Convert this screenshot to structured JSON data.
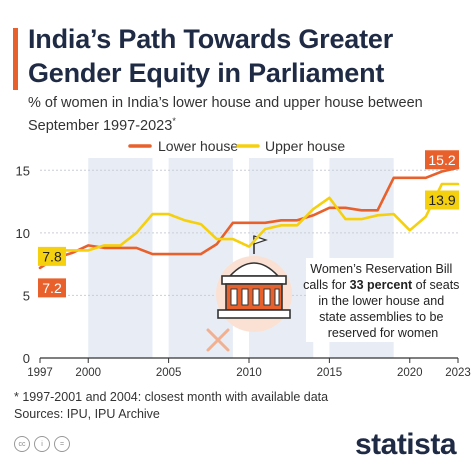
{
  "title": "India’s Path Towards Greater Gender Equity in Parliament",
  "subtitle": "% of women in India’s lower house and upper house between September 1997-2023",
  "subtitle_mark": "*",
  "footnote": "* 1997-2001 and 2004: closest month with available data",
  "sources": "Sources: IPU, IPU Archive",
  "brand": "statista",
  "license_icons": [
    "creative-commons-icon",
    "attribution-icon",
    "no-derivatives-icon"
  ],
  "colors": {
    "lower_house": "#e8612c",
    "upper_house": "#f5d00f",
    "shade": "#e8edf5",
    "title": "#1f2a44"
  },
  "chart_data": {
    "type": "line",
    "xlim": [
      1997,
      2023
    ],
    "ylim": [
      0,
      15.5
    ],
    "yticks": [
      0,
      5,
      10,
      15
    ],
    "xtick_labels": [
      "1997",
      "2000",
      "2005",
      "2010",
      "2015",
      "2020",
      "2023"
    ],
    "grid": true,
    "legend_placement": "top",
    "shaded_bands": [
      [
        2000,
        2004
      ],
      [
        2005,
        2009
      ],
      [
        2010,
        2014
      ],
      [
        2015,
        2019
      ]
    ],
    "series": [
      {
        "name": "Lower house",
        "x": [
          1997,
          1998,
          1999,
          2000,
          2001,
          2002,
          2003,
          2004,
          2005,
          2006,
          2007,
          2008,
          2009,
          2010,
          2011,
          2012,
          2013,
          2014,
          2015,
          2016,
          2017,
          2018,
          2019,
          2020,
          2021,
          2022,
          2023
        ],
        "values": [
          7.2,
          8.0,
          8.4,
          9.0,
          8.8,
          8.8,
          8.8,
          8.3,
          8.3,
          8.3,
          8.3,
          9.1,
          10.8,
          10.8,
          10.8,
          11.0,
          11.0,
          11.4,
          12.0,
          12.0,
          11.8,
          11.8,
          14.4,
          14.4,
          14.4,
          14.9,
          15.2
        ]
      },
      {
        "name": "Upper house",
        "x": [
          1997,
          1998,
          1999,
          2000,
          2001,
          2002,
          2003,
          2004,
          2005,
          2006,
          2007,
          2008,
          2009,
          2010,
          2011,
          2012,
          2013,
          2014,
          2015,
          2016,
          2017,
          2018,
          2019,
          2020,
          2021,
          2022,
          2023
        ],
        "values": [
          7.8,
          8.6,
          8.6,
          8.6,
          9.0,
          9.0,
          10.0,
          11.5,
          11.5,
          11.0,
          10.7,
          9.5,
          9.5,
          8.9,
          10.3,
          10.6,
          10.6,
          11.9,
          12.8,
          11.1,
          11.1,
          11.4,
          11.5,
          10.2,
          11.3,
          13.9,
          13.9
        ]
      }
    ],
    "data_labels": [
      {
        "series": "Lower house",
        "x": 1997,
        "text": "7.2"
      },
      {
        "series": "Upper house",
        "x": 1997,
        "text": "7.8"
      },
      {
        "series": "Lower house",
        "x": 2023,
        "text": "15.2"
      },
      {
        "series": "Upper house",
        "x": 2023,
        "text": "13.9"
      }
    ],
    "annotation": {
      "text_before": "Women’s Reservation Bill calls for ",
      "text_bold": "33 percent",
      "text_after": " of seats in the lower house and state assemblies to be reserved for women",
      "icon": "parliament-building-icon",
      "secondary_icon": "female-symbol-icon"
    }
  }
}
